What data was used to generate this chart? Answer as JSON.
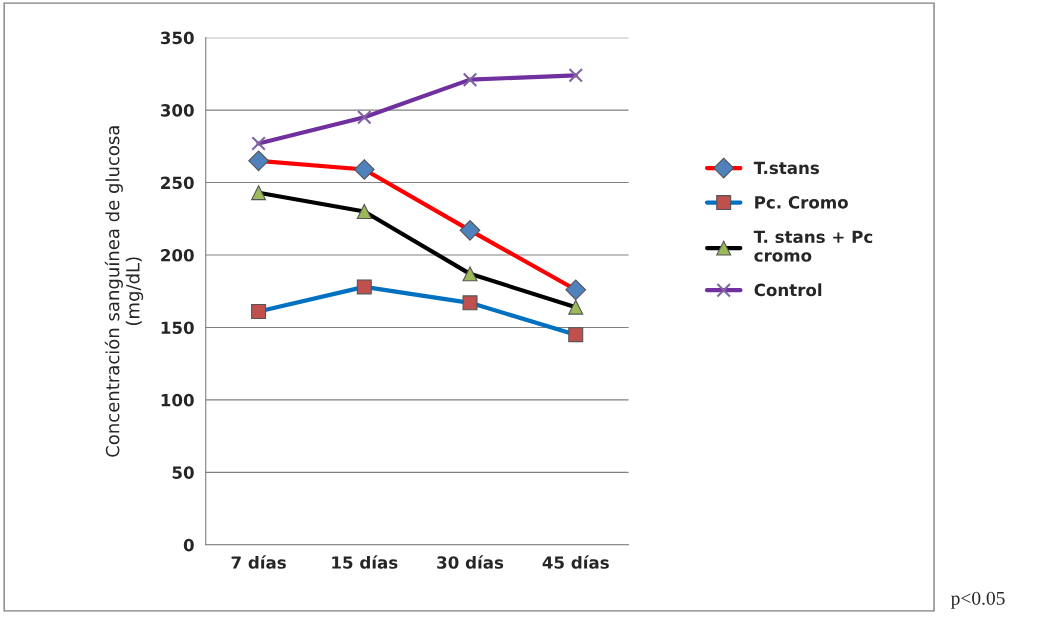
{
  "chart_data": {
    "type": "line",
    "ylabel": "Concentración sanguínea de glucosa\n(mg/dL)",
    "categories": [
      "7 días",
      "15 días",
      "30 días",
      "45 días"
    ],
    "series": [
      {
        "name": "T.stans",
        "color": "#ff0000",
        "marker": "diamond",
        "values": [
          265,
          259,
          217,
          176
        ]
      },
      {
        "name": "Pc. Cromo",
        "color": "#0070c0",
        "marker": "square",
        "values": [
          161,
          178,
          167,
          145
        ]
      },
      {
        "name": "T. stans + Pc\ncromo",
        "color": "#000000",
        "marker": "triangle",
        "values": [
          243,
          230,
          187,
          164
        ]
      },
      {
        "name": "Control",
        "color": "#7030a0",
        "marker": "cross",
        "values": [
          277,
          295,
          321,
          324
        ]
      }
    ],
    "ylim": [
      0,
      350
    ],
    "yticks": [
      0,
      50,
      100,
      150,
      200,
      250,
      300,
      350
    ],
    "grid": "y",
    "legend": "right",
    "annotations": [
      "p<0.05"
    ]
  }
}
